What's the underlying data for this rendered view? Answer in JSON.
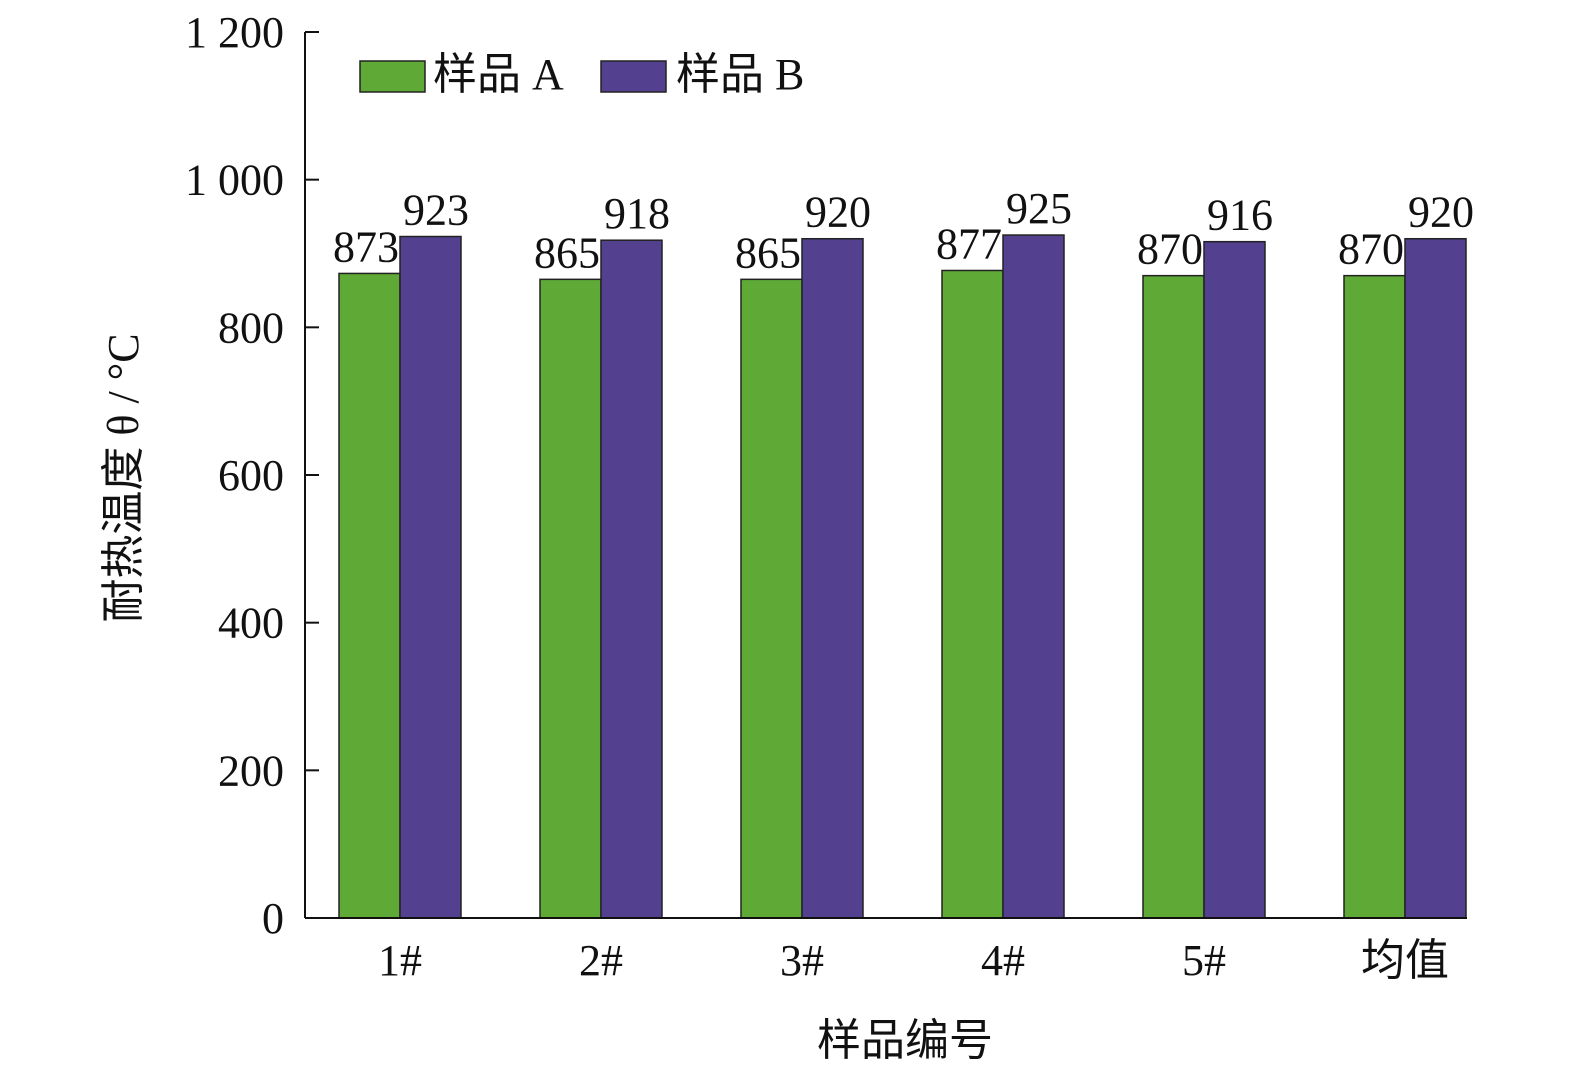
{
  "chart_data": {
    "type": "bar",
    "title": "",
    "xlabel": "样品编号",
    "ylabel": "耐热温度 θ / °C",
    "ylim": [
      0,
      1200
    ],
    "yticks": [
      0,
      200,
      400,
      600,
      800,
      1000,
      1200
    ],
    "ytick_labels": [
      "0",
      "200",
      "400",
      "600",
      "800",
      "1 000",
      "1 200"
    ],
    "categories": [
      "1#",
      "2#",
      "3#",
      "4#",
      "5#",
      "均值"
    ],
    "series": [
      {
        "name": "样品 A",
        "color": "#5faa37",
        "values": [
          873,
          865,
          865,
          877,
          870,
          870
        ],
        "data_labels": [
          "873",
          "865",
          "865",
          "877",
          "870",
          "870"
        ]
      },
      {
        "name": "样品 B",
        "color": "#53408f",
        "values": [
          923,
          918,
          920,
          925,
          916,
          920
        ],
        "data_labels": [
          "923",
          "918",
          "920",
          "925",
          "916",
          "920"
        ]
      }
    ],
    "legend": "top-left",
    "grid": false
  }
}
